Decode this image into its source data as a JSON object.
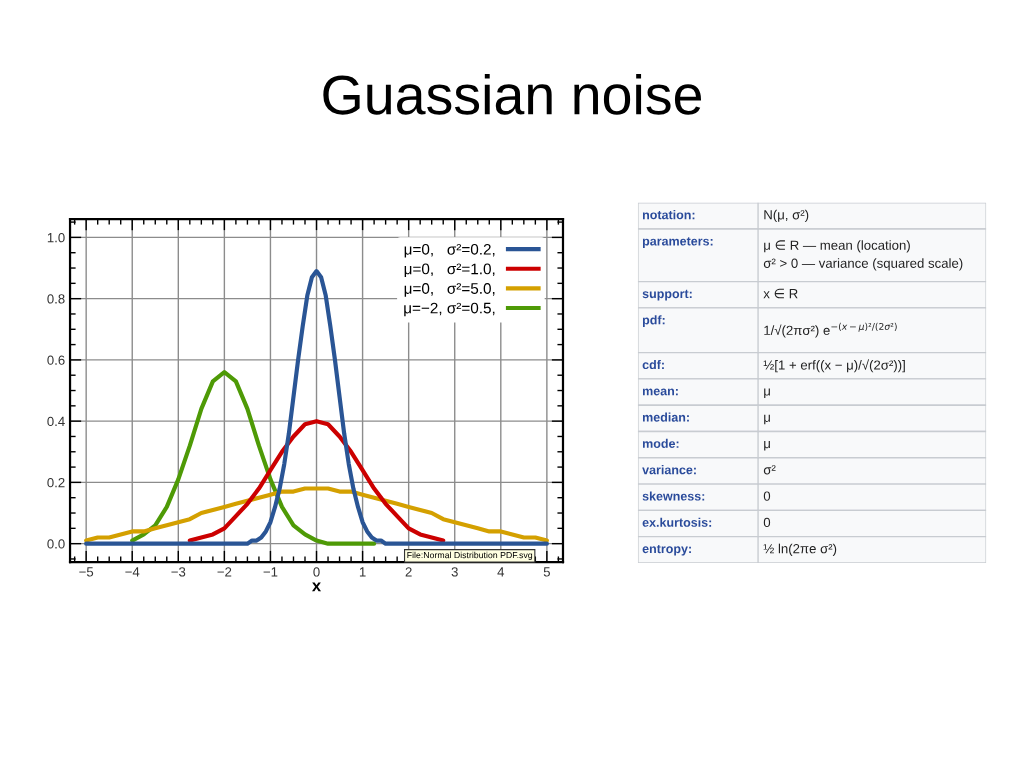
{
  "chart_data": [
    {
      "type": "line",
      "title": "Guassian noise",
      "xlabel": "x",
      "x": [
        -5,
        -4.75,
        -4.5,
        -4.25,
        -4,
        -3.75,
        -3.5,
        -3.25,
        -3,
        -2.75,
        -2.5,
        -2.25,
        -2,
        -1.75,
        -1.5,
        -1.25,
        -1,
        -0.75,
        -0.5,
        -0.25,
        0,
        0.25,
        0.5,
        0.75,
        1,
        1.25,
        1.5,
        1.75,
        2,
        2.25,
        2.5,
        2.75,
        3,
        3.25,
        3.5,
        3.75,
        4,
        4.25,
        4.5,
        4.75,
        5
      ],
      "series": [
        {
          "name": "μ=0,   σ²=0.2,",
          "color": "#2a5595",
          "x": [
            -5,
            -4,
            -3,
            -2,
            -1.5,
            -1.4,
            -1.3,
            -1.2,
            -1.1,
            -1.0,
            -0.9,
            -0.8,
            -0.7,
            -0.6,
            -0.5,
            -0.4,
            -0.3,
            -0.2,
            -0.1,
            0,
            0.1,
            0.2,
            0.3,
            0.4,
            0.5,
            0.6,
            0.7,
            0.8,
            0.9,
            1.0,
            1.1,
            1.2,
            1.3,
            1.4,
            1.5,
            2,
            3,
            4,
            5
          ],
          "values": [
            0,
            0,
            0,
            0,
            0,
            0.01,
            0.01,
            0.02,
            0.04,
            0.07,
            0.12,
            0.18,
            0.26,
            0.36,
            0.48,
            0.6,
            0.71,
            0.81,
            0.87,
            0.89,
            0.87,
            0.81,
            0.71,
            0.6,
            0.48,
            0.36,
            0.26,
            0.18,
            0.12,
            0.07,
            0.04,
            0.02,
            0.01,
            0.01,
            0,
            0,
            0,
            0,
            0
          ]
        },
        {
          "name": "μ=0,   σ²=1.0,",
          "color": "#cc0000",
          "values": [
            null,
            null,
            null,
            null,
            null,
            null,
            null,
            null,
            null,
            0.01,
            0.02,
            0.03,
            0.05,
            0.09,
            0.13,
            0.18,
            0.24,
            0.3,
            0.35,
            0.39,
            0.4,
            0.39,
            0.35,
            0.3,
            0.24,
            0.18,
            0.13,
            0.09,
            0.05,
            0.03,
            0.02,
            0.01,
            null,
            null,
            null,
            null,
            null,
            null,
            null,
            null,
            null
          ]
        },
        {
          "name": "μ=0,   σ²=5.0,",
          "color": "#d4a000",
          "values": [
            0.01,
            0.02,
            0.02,
            0.03,
            0.04,
            0.04,
            0.05,
            0.06,
            0.07,
            0.08,
            0.1,
            0.11,
            0.12,
            0.13,
            0.14,
            0.15,
            0.16,
            0.17,
            0.17,
            0.18,
            0.18,
            0.18,
            0.17,
            0.17,
            0.16,
            0.15,
            0.14,
            0.13,
            0.12,
            0.11,
            0.1,
            0.08,
            0.07,
            0.06,
            0.05,
            0.04,
            0.04,
            0.03,
            0.02,
            0.02,
            0.01
          ]
        },
        {
          "name": "μ=−2, σ²=0.5,",
          "color": "#4e9a06",
          "values": [
            null,
            null,
            null,
            null,
            0.01,
            0.03,
            0.06,
            0.12,
            0.21,
            0.32,
            0.44,
            0.53,
            0.56,
            0.53,
            0.44,
            0.32,
            0.21,
            0.12,
            0.06,
            0.03,
            0.01,
            0,
            0,
            0,
            0,
            0,
            null,
            null,
            null,
            null,
            null,
            null,
            null,
            null,
            null,
            null,
            null,
            null,
            null,
            null,
            null
          ]
        }
      ],
      "xlim": [
        -5.35,
        5.35
      ],
      "ylim": [
        -0.06,
        1.06
      ],
      "xticks": [
        {
          "value": -5,
          "label": "−5"
        },
        {
          "value": -4,
          "label": "−4"
        },
        {
          "value": -3,
          "label": "−3"
        },
        {
          "value": -2,
          "label": "−2"
        },
        {
          "value": -1,
          "label": "−1"
        },
        0,
        1,
        2,
        3,
        4,
        5
      ],
      "yticks": [
        {
          "value": 0,
          "label": "0.0"
        },
        0.2,
        0.4,
        0.6,
        0.8,
        {
          "value": 1,
          "label": "1.0"
        }
      ],
      "grid": true,
      "legend": "top right",
      "line_style": "solid",
      "annotations": [
        "File:Normal Distribution PDF.svg"
      ]
    },
    {
      "type": "other",
      "annotations": [
        "notation:",
        "N(μ, σ²)",
        "parameters:",
        "μ ∈ R — mean (location)\nσ² > 0 — variance (squared scale)",
        "support:",
        "x ∈ R",
        "pdf:",
        "1/√(2πσ²) e$^{−(x−μ)²/(2σ²)}$",
        "cdf:",
        "½[1 + erf((x − μ)/√(2σ²))]",
        "mean:",
        "μ",
        "median:",
        "μ",
        "mode:",
        "μ",
        "variance:",
        "σ²",
        "skewness:",
        "0",
        "ex.kurtosis:",
        "0",
        "entropy:",
        "½ ln(2πe σ²)"
      ]
    }
  ]
}
